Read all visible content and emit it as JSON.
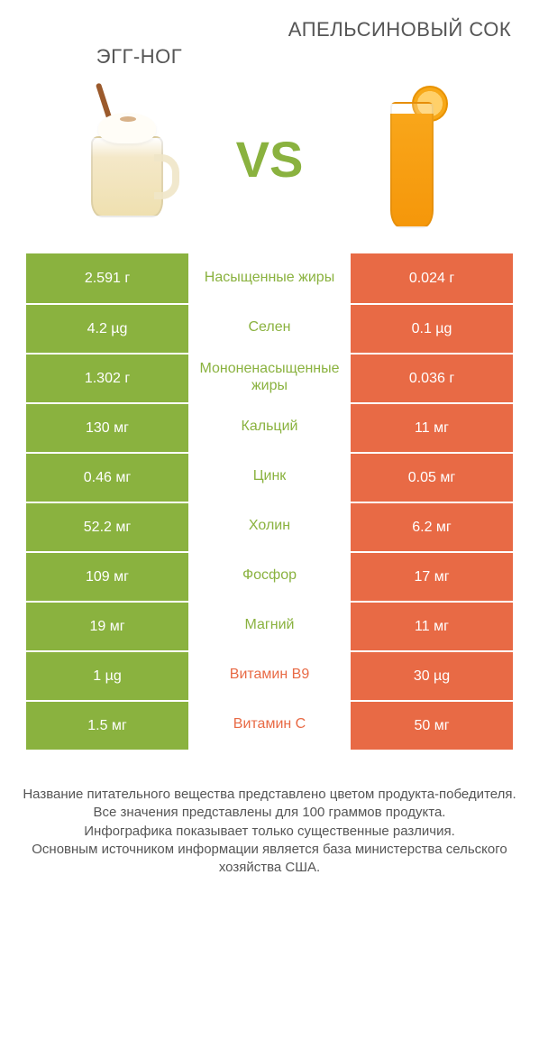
{
  "colors": {
    "green": "#8ab23f",
    "orange": "#e86a45",
    "white": "#ffffff"
  },
  "header": {
    "left_title": "ЭГГ-НОГ",
    "right_title": "АПЕЛЬСИНОВЫЙ СОК"
  },
  "vs_label": "VS",
  "comparison": {
    "type": "table",
    "rows": [
      {
        "left": "2.591 г",
        "label": "Насыщенные жиры",
        "right": "0.024 г",
        "winner": "left"
      },
      {
        "left": "4.2 µg",
        "label": "Селен",
        "right": "0.1 µg",
        "winner": "left"
      },
      {
        "left": "1.302 г",
        "label": "Мононенасыщенные жиры",
        "right": "0.036 г",
        "winner": "left"
      },
      {
        "left": "130 мг",
        "label": "Кальций",
        "right": "11 мг",
        "winner": "left"
      },
      {
        "left": "0.46 мг",
        "label": "Цинк",
        "right": "0.05 мг",
        "winner": "left"
      },
      {
        "left": "52.2 мг",
        "label": "Холин",
        "right": "6.2 мг",
        "winner": "left"
      },
      {
        "left": "109 мг",
        "label": "Фосфор",
        "right": "17 мг",
        "winner": "left"
      },
      {
        "left": "19 мг",
        "label": "Магний",
        "right": "11 мг",
        "winner": "left"
      },
      {
        "left": "1 µg",
        "label": "Витамин B9",
        "right": "30 µg",
        "winner": "right"
      },
      {
        "left": "1.5 мг",
        "label": "Витамин C",
        "right": "50 мг",
        "winner": "right"
      }
    ]
  },
  "footer": {
    "line1": "Название питательного вещества представлено цветом продукта-победителя.",
    "line2": "Все значения представлены для 100 граммов продукта.",
    "line3": "Инфографика показывает только существенные различия.",
    "line4": "Основным источником информации является база министерства сельского хозяйства США."
  }
}
